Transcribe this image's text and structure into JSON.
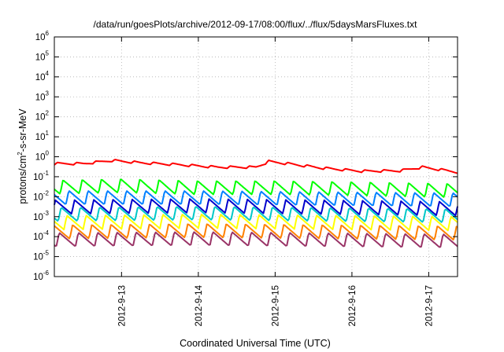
{
  "chart_data": {
    "type": "line",
    "title": "/data/run/goesPlots/archive/2012-09-17/08:00/flux/../flux/5daysMarsFluxes.txt",
    "xlabel": "Coordinated Universal Time (UTC)",
    "ylabel": {
      "prefix": "protons/cm",
      "sup": "2",
      "suffix": "-s-sr-MeV"
    },
    "y_scale": "log",
    "ylim": [
      1e-06,
      1000000.0
    ],
    "y_ticks": [
      {
        "base": "10",
        "exp": "-6",
        "value": 1e-06
      },
      {
        "base": "10",
        "exp": "-5",
        "value": 1e-05
      },
      {
        "base": "10",
        "exp": "-4",
        "value": 0.0001
      },
      {
        "base": "10",
        "exp": "-3",
        "value": 0.001
      },
      {
        "base": "10",
        "exp": "-2",
        "value": 0.01
      },
      {
        "base": "10",
        "exp": "-1",
        "value": 0.1
      },
      {
        "base": "10",
        "exp": "0",
        "value": 1
      },
      {
        "base": "10",
        "exp": "1",
        "value": 10
      },
      {
        "base": "10",
        "exp": "2",
        "value": 100
      },
      {
        "base": "10",
        "exp": "3",
        "value": 1000
      },
      {
        "base": "10",
        "exp": "4",
        "value": 10000
      },
      {
        "base": "10",
        "exp": "5",
        "value": 100000
      },
      {
        "base": "10",
        "exp": "6",
        "value": 1000000
      }
    ],
    "xlim": [
      "2012-09-12T03:00",
      "2012-09-17T09:00"
    ],
    "x_ticks": [
      {
        "label": "2012-9-13",
        "value": "2012-09-13T00:00"
      },
      {
        "label": "2012-9-14",
        "value": "2012-09-14T00:00"
      },
      {
        "label": "2012-9-15",
        "value": "2012-09-15T00:00"
      },
      {
        "label": "2012-9-16",
        "value": "2012-09-16T00:00"
      },
      {
        "label": "2012-9-17",
        "value": "2012-09-17T00:00"
      }
    ],
    "grid": true,
    "series": [
      {
        "color": "#ff0000",
        "peak_period_hours": 6,
        "points": [
          [
            "2012-09-12T03:00",
            0.45
          ],
          [
            "2012-09-12T12:00",
            0.45
          ],
          [
            "2012-09-12T21:00",
            0.65
          ],
          [
            "2012-09-13T06:00",
            0.5
          ],
          [
            "2012-09-13T18:00",
            0.4
          ],
          [
            "2012-09-14T06:00",
            0.3
          ],
          [
            "2012-09-14T18:00",
            0.3
          ],
          [
            "2012-09-14T22:00",
            0.58
          ],
          [
            "2012-09-15T04:00",
            0.45
          ],
          [
            "2012-09-15T15:00",
            0.27
          ],
          [
            "2012-09-16T03:00",
            0.19
          ],
          [
            "2012-09-16T15:00",
            0.2
          ],
          [
            "2012-09-16T22:00",
            0.3
          ],
          [
            "2012-09-17T06:00",
            0.2
          ],
          [
            "2012-09-17T09:00",
            0.17
          ]
        ]
      },
      {
        "color": "#00ff00",
        "peak_period_hours": 6,
        "points": [
          [
            "2012-09-12T03:00",
            0.03
          ],
          [
            "2012-09-13T00:00",
            0.035
          ],
          [
            "2012-09-14T00:00",
            0.028
          ],
          [
            "2012-09-15T00:00",
            0.028
          ],
          [
            "2012-09-16T00:00",
            0.025
          ],
          [
            "2012-09-17T09:00",
            0.02
          ]
        ]
      },
      {
        "color": "#0080ff",
        "peak_period_hours": 6,
        "points": [
          [
            "2012-09-12T03:00",
            0.009
          ],
          [
            "2012-09-14T00:00",
            0.009
          ],
          [
            "2012-09-17T09:00",
            0.007
          ]
        ]
      },
      {
        "color": "#0000cc",
        "peak_period_hours": 6,
        "points": [
          [
            "2012-09-12T03:00",
            0.003
          ],
          [
            "2012-09-14T00:00",
            0.0035
          ],
          [
            "2012-09-17T09:00",
            0.0025
          ]
        ]
      },
      {
        "color": "#00c8c8",
        "peak_period_hours": 6,
        "points": [
          [
            "2012-09-12T03:00",
            0.0013
          ],
          [
            "2012-09-14T00:00",
            0.0015
          ],
          [
            "2012-09-17T09:00",
            0.0011
          ]
        ]
      },
      {
        "color": "#ffff00",
        "peak_period_hours": 6,
        "points": [
          [
            "2012-09-12T03:00",
            0.0005
          ],
          [
            "2012-09-14T00:00",
            0.0006
          ],
          [
            "2012-09-17T09:00",
            0.00045
          ]
        ]
      },
      {
        "color": "#ff8000",
        "peak_period_hours": 6,
        "points": [
          [
            "2012-09-12T03:00",
            0.00017
          ],
          [
            "2012-09-14T00:00",
            0.0002
          ],
          [
            "2012-09-17T09:00",
            0.00015
          ]
        ]
      },
      {
        "color": "#993366",
        "peak_period_hours": 6,
        "points": [
          [
            "2012-09-12T03:00",
            7e-05
          ],
          [
            "2012-09-14T00:00",
            8e-05
          ],
          [
            "2012-09-17T09:00",
            6e-05
          ]
        ]
      }
    ]
  }
}
